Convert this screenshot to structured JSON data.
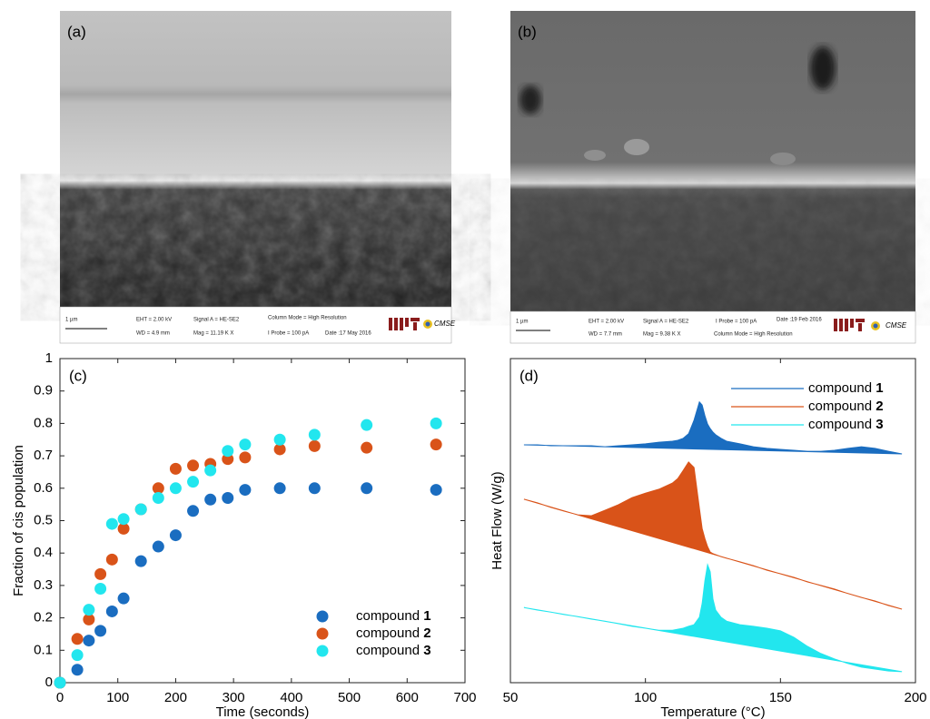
{
  "panels": [
    {
      "label": "(a)",
      "scale_bar": "1 µm",
      "info": [
        "EHT = 2.00 kV",
        "WD = 4.9 mm",
        "Signal A = HE-SE2",
        "Mag = 11.19 K X",
        "Column Mode = High Resolution",
        "I Probe = 100 pA",
        "Date :17 May 2016"
      ],
      "logo": "CMSE"
    },
    {
      "label": "(b)",
      "scale_bar": "1 µm",
      "info": [
        "EHT = 2.00 kV",
        "WD = 7.7 mm",
        "Signal A = HE-SE2",
        "Mag = 9.38 K X",
        "I Probe = 100 pA",
        "Column Mode = High Resolution",
        "Date :19 Feb 2016"
      ],
      "logo": "CMSE"
    }
  ],
  "chart_data": [
    {
      "type": "scatter",
      "panel_label": "(c)",
      "x_label": "Time (seconds)",
      "y_label": "Fraction of cis population",
      "x": [
        0,
        30,
        50,
        70,
        90,
        110,
        140,
        170,
        200,
        230,
        260,
        290,
        320,
        380,
        440,
        530,
        650
      ],
      "series": [
        {
          "name": "compound 1",
          "color": "#1a6dc0",
          "values": [
            0,
            0.04,
            0.13,
            0.16,
            0.22,
            0.26,
            0.375,
            0.42,
            0.455,
            0.53,
            0.565,
            0.57,
            0.595,
            0.6,
            0.6,
            0.6,
            0.595
          ]
        },
        {
          "name": "compound 2",
          "color": "#d95319",
          "values": [
            0,
            0.135,
            0.195,
            0.335,
            0.38,
            0.475,
            0.535,
            0.6,
            0.66,
            0.67,
            0.675,
            0.69,
            0.695,
            0.72,
            0.73,
            0.725,
            0.735
          ]
        },
        {
          "name": "compound 3",
          "color": "#22e6ee",
          "values": [
            0,
            0.085,
            0.225,
            0.29,
            0.49,
            0.505,
            0.535,
            0.57,
            0.6,
            0.62,
            0.655,
            0.715,
            0.735,
            0.75,
            0.765,
            0.795,
            0.8
          ]
        }
      ],
      "xlim": [
        0,
        700
      ],
      "xticks": [
        0,
        100,
        200,
        300,
        400,
        500,
        600,
        700
      ],
      "ylim": [
        0,
        1
      ],
      "yticks": [
        0,
        0.1,
        0.2,
        0.3,
        0.4,
        0.5,
        0.6,
        0.7,
        0.8,
        0.9,
        1
      ],
      "legend": "lower right"
    },
    {
      "type": "area",
      "panel_label": "(d)",
      "x_label": "Temperature (°C)",
      "y_label": "Heat Flow (W/g)",
      "x": [
        55,
        60,
        65,
        70,
        75,
        80,
        85,
        90,
        95,
        100,
        105,
        110,
        112,
        114,
        116,
        118,
        120,
        121,
        122,
        123,
        124,
        125,
        126,
        128,
        130,
        135,
        140,
        145,
        150,
        155,
        160,
        165,
        170,
        175,
        180,
        185,
        190,
        195
      ],
      "series": [
        {
          "name": "compound 1",
          "color": "#1a6dc0",
          "values": [
            0.734,
            0.734,
            0.731,
            0.731,
            0.731,
            0.731,
            0.728,
            0.731,
            0.734,
            0.737,
            0.742,
            0.745,
            0.748,
            0.754,
            0.768,
            0.81,
            0.866,
            0.857,
            0.824,
            0.798,
            0.784,
            0.773,
            0.765,
            0.754,
            0.745,
            0.737,
            0.728,
            0.723,
            0.72,
            0.717,
            0.714,
            0.714,
            0.717,
            0.723,
            0.728,
            0.723,
            0.714,
            0.706
          ]
        },
        {
          "name": "compound 2",
          "color": "#d95319",
          "values": [
            0.566,
            0.555,
            0.541,
            0.529,
            0.518,
            0.515,
            0.532,
            0.549,
            0.571,
            0.585,
            0.597,
            0.616,
            0.63,
            0.655,
            0.681,
            0.664,
            0.538,
            0.476,
            0.445,
            0.42,
            0.403,
            0.398,
            0.395,
            0.389,
            0.384,
            0.373,
            0.361,
            0.347,
            0.336,
            0.325,
            0.311,
            0.3,
            0.289,
            0.275,
            0.263,
            0.252,
            0.238,
            0.227
          ]
        },
        {
          "name": "compound 3",
          "color": "#22e6ee",
          "values": [
            0.232,
            0.224,
            0.218,
            0.21,
            0.204,
            0.196,
            0.19,
            0.182,
            0.174,
            0.168,
            0.162,
            0.162,
            0.165,
            0.168,
            0.174,
            0.179,
            0.202,
            0.244,
            0.314,
            0.364,
            0.342,
            0.258,
            0.224,
            0.202,
            0.19,
            0.179,
            0.174,
            0.168,
            0.16,
            0.14,
            0.112,
            0.09,
            0.073,
            0.059,
            0.048,
            0.042,
            0.036,
            0.034
          ]
        }
      ],
      "xlim": [
        50,
        200
      ],
      "xticks": [
        50,
        100,
        150,
        200
      ],
      "ylim": [
        0,
        1
      ],
      "legend": "upper right"
    }
  ]
}
